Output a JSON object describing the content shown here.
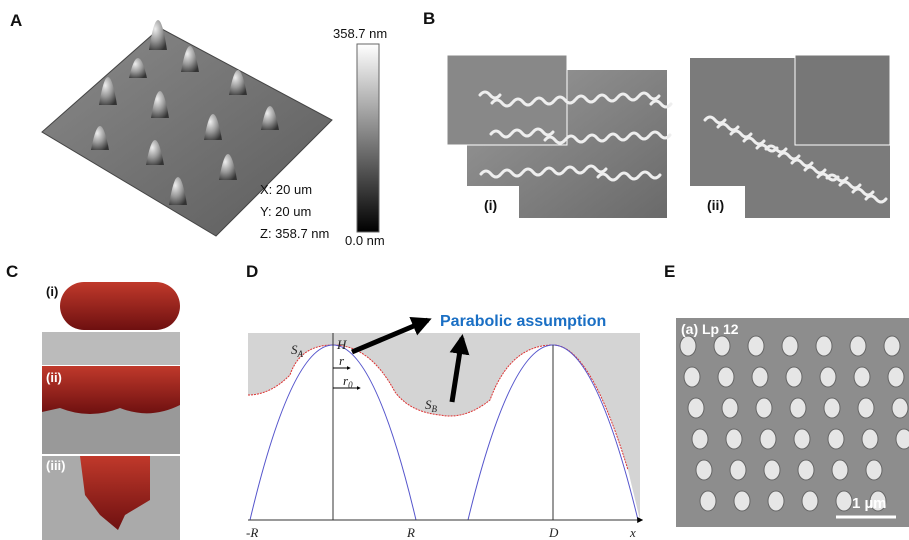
{
  "panel_a": {
    "label": "A",
    "scale_max": "358.7 nm",
    "scale_min": "0.0 nm",
    "dimensions": [
      "X: 20 um",
      "Y: 20 um",
      "Z: 358.7 nm"
    ]
  },
  "panel_b": {
    "label": "B",
    "images": [
      "(i)",
      "(ii)"
    ]
  },
  "panel_c": {
    "label": "C",
    "images": [
      "(i)",
      "(ii)",
      "(iii)"
    ]
  },
  "panel_d": {
    "label": "D",
    "annotation": "Parabolic assumption",
    "symbols": {
      "h": "H",
      "s_a": {
        "text": "S",
        "subscript": "A"
      },
      "s_b": {
        "text": "S",
        "subscript": "B"
      },
      "r": "r",
      "r0": {
        "text": "r",
        "subscript": "0"
      },
      "minus_r": "-R",
      "plus_r": "R",
      "d": "D",
      "x": "x"
    }
  },
  "panel_e": {
    "label": "E",
    "caption": "(a) Lp 12",
    "scale_bar": "1 µm"
  }
}
